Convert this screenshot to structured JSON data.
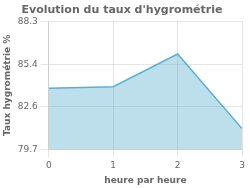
{
  "chart_data": {
    "type": "area",
    "title": "Evolution du taux d'hygrométrie",
    "xlabel": "heure par heure",
    "ylabel": "Taux hygrométrie %",
    "x": [
      0,
      1,
      2,
      3
    ],
    "values": [
      83.8,
      83.9,
      86.1,
      81.1
    ],
    "xlim": [
      0,
      3
    ],
    "ylim": [
      79.7,
      88.3
    ],
    "xticks": [
      0,
      1,
      2,
      3
    ],
    "yticks": [
      79.7,
      82.6,
      85.4,
      88.3
    ],
    "color": "#5ab0d0",
    "grid": true
  }
}
